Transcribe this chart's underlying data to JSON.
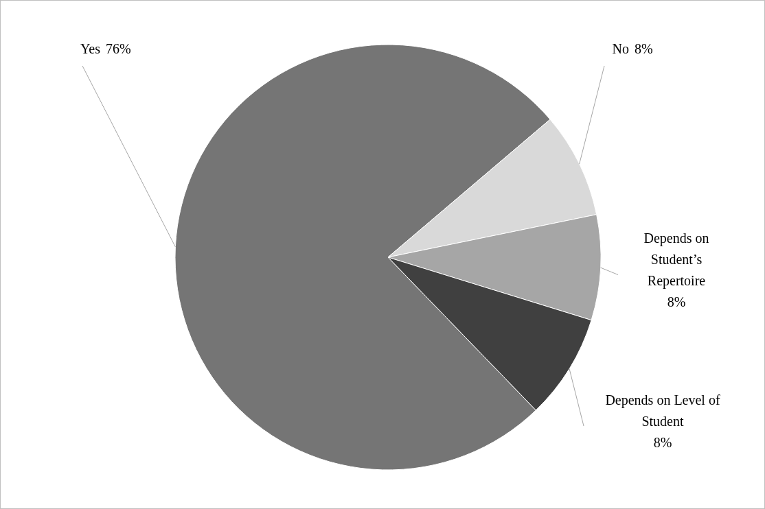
{
  "chart_data": {
    "type": "pie",
    "categories": [
      "Yes",
      "No",
      "Depends on Student’s Repertoire",
      "Depends on Level of Student"
    ],
    "values": [
      76,
      8,
      8,
      8
    ],
    "value_labels": [
      "76%",
      "8%",
      "8%",
      "8%"
    ],
    "colors": [
      "#757575",
      "#d9d9d9",
      "#a6a6a6",
      "#404040"
    ]
  }
}
